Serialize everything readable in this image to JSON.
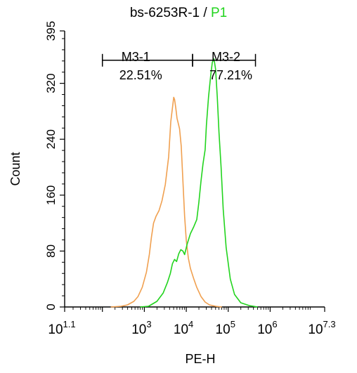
{
  "chart_data": {
    "type": "line",
    "title_main": "bs-6253R-1",
    "title_sep": " / ",
    "title_gate": "P1",
    "xlabel": "PE-H",
    "ylabel": "Count",
    "x_scale": "log",
    "xlim_log10": [
      1.1,
      7.3
    ],
    "ylim": [
      0,
      395
    ],
    "yticks": [
      0,
      80,
      160,
      240,
      320,
      395
    ],
    "xticks": [
      {
        "base": "10",
        "exp": "1.1"
      },
      {
        "base": "10",
        "exp": "3"
      },
      {
        "base": "10",
        "exp": "4"
      },
      {
        "base": "10",
        "exp": "5"
      },
      {
        "base": "10",
        "exp": "6"
      },
      {
        "base": "10",
        "exp": "7.3"
      }
    ],
    "grid": false,
    "colors": {
      "orange": "#f0a050",
      "green": "#22d41e"
    },
    "series": [
      {
        "color": "#f0a050",
        "points_log10x_count": [
          [
            2.2,
            0
          ],
          [
            2.45,
            1
          ],
          [
            2.6,
            3
          ],
          [
            2.75,
            8
          ],
          [
            2.85,
            15
          ],
          [
            2.95,
            28
          ],
          [
            3.05,
            50
          ],
          [
            3.12,
            75
          ],
          [
            3.17,
            100
          ],
          [
            3.22,
            120
          ],
          [
            3.28,
            130
          ],
          [
            3.35,
            138
          ],
          [
            3.42,
            152
          ],
          [
            3.5,
            175
          ],
          [
            3.58,
            215
          ],
          [
            3.63,
            265
          ],
          [
            3.68,
            290
          ],
          [
            3.7,
            300
          ],
          [
            3.72,
            297
          ],
          [
            3.75,
            285
          ],
          [
            3.78,
            270
          ],
          [
            3.8,
            265
          ],
          [
            3.84,
            255
          ],
          [
            3.88,
            230
          ],
          [
            3.92,
            180
          ],
          [
            3.96,
            130
          ],
          [
            4.0,
            95
          ],
          [
            4.05,
            70
          ],
          [
            4.1,
            55
          ],
          [
            4.18,
            40
          ],
          [
            4.25,
            28
          ],
          [
            4.35,
            15
          ],
          [
            4.45,
            7
          ],
          [
            4.55,
            3
          ],
          [
            4.7,
            1
          ],
          [
            4.85,
            0
          ]
        ]
      },
      {
        "color": "#22d41e",
        "points_log10x_count": [
          [
            2.9,
            0
          ],
          [
            3.1,
            1
          ],
          [
            3.3,
            8
          ],
          [
            3.45,
            20
          ],
          [
            3.55,
            35
          ],
          [
            3.62,
            48
          ],
          [
            3.67,
            62
          ],
          [
            3.72,
            68
          ],
          [
            3.77,
            65
          ],
          [
            3.82,
            76
          ],
          [
            3.87,
            82
          ],
          [
            3.92,
            80
          ],
          [
            3.96,
            75
          ],
          [
            4.02,
            90
          ],
          [
            4.1,
            105
          ],
          [
            4.18,
            115
          ],
          [
            4.25,
            125
          ],
          [
            4.3,
            150
          ],
          [
            4.35,
            180
          ],
          [
            4.4,
            205
          ],
          [
            4.45,
            225
          ],
          [
            4.48,
            260
          ],
          [
            4.53,
            300
          ],
          [
            4.58,
            330
          ],
          [
            4.62,
            350
          ],
          [
            4.66,
            355
          ],
          [
            4.7,
            340
          ],
          [
            4.74,
            300
          ],
          [
            4.78,
            250
          ],
          [
            4.83,
            200
          ],
          [
            4.88,
            140
          ],
          [
            4.95,
            85
          ],
          [
            5.05,
            40
          ],
          [
            5.15,
            18
          ],
          [
            5.3,
            6
          ],
          [
            5.5,
            2
          ],
          [
            5.7,
            0
          ]
        ]
      }
    ],
    "gates": [
      {
        "name": "M3-1",
        "percent": "22.51%",
        "x_from_log10": 2.0,
        "x_to_log10": 4.15,
        "y": 353
      },
      {
        "name": "M3-2",
        "percent": "77.21%",
        "x_from_log10": 4.15,
        "x_to_log10": 5.65,
        "y": 353
      }
    ]
  }
}
